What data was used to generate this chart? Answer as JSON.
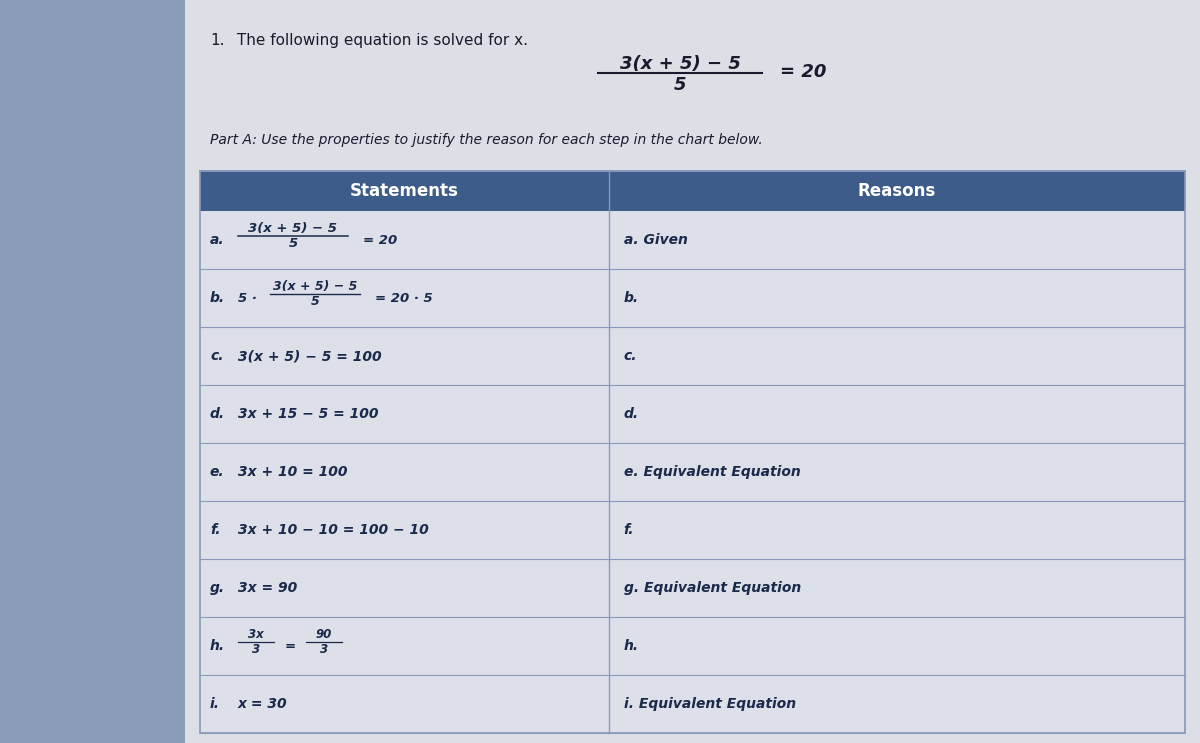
{
  "title_num": "1.",
  "title_text": " The following equation is solved for x.",
  "part_a_text": "Part A: Use the properties to justify the reason for each step in the chart below.",
  "col1_header": "Statements",
  "col2_header": "Reasons",
  "rows": [
    {
      "stmt_label": "a.",
      "stmt_content": "fraction_a",
      "reason_label": "a.",
      "reason_content": "Given"
    },
    {
      "stmt_label": "b.",
      "stmt_content": "fraction_b",
      "reason_label": "b.",
      "reason_content": ""
    },
    {
      "stmt_label": "c.",
      "stmt_content": "3(x + 5) − 5 = 100",
      "reason_label": "c.",
      "reason_content": ""
    },
    {
      "stmt_label": "d.",
      "stmt_content": "3x + 15 − 5 = 100",
      "reason_label": "d.",
      "reason_content": ""
    },
    {
      "stmt_label": "e.",
      "stmt_content": "3x + 10 = 100",
      "reason_label": "e.",
      "reason_content": "Equivalent Equation"
    },
    {
      "stmt_label": "f.",
      "stmt_content": "3x + 10 − 10 = 100 − 10",
      "reason_label": "f.",
      "reason_content": ""
    },
    {
      "stmt_label": "g.",
      "stmt_content": "3x = 90",
      "reason_label": "g.",
      "reason_content": "Equivalent Equation"
    },
    {
      "stmt_label": "h.",
      "stmt_content": "fraction_h",
      "reason_label": "h.",
      "reason_content": ""
    },
    {
      "stmt_label": "i.",
      "stmt_content": "x = 30",
      "reason_label": "i.",
      "reason_content": "Equivalent Equation"
    }
  ],
  "bg_left": "#8a9ab5",
  "bg_right": "#c8ccd4",
  "page_color": "#dcdfe5",
  "table_row_light": "#dde0e8",
  "table_row_mid": "#c8ccd6",
  "header_bg": "#3d5c8a",
  "header_text_color": "#ffffff",
  "cell_text_color": "#1a2a4a",
  "border_color": "#8899bb",
  "text_color_dark": "#1a1a2e"
}
